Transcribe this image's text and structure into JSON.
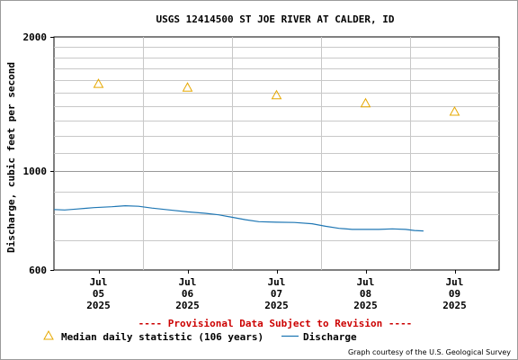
{
  "chart_data": {
    "type": "line",
    "title": "USGS 12414500 ST JOE RIVER AT CALDER, ID",
    "ylabel": "Discharge, cubic feet per second",
    "xlabel": "",
    "yscale": "log",
    "ylim": [
      600,
      2000
    ],
    "y_ticks": [
      "2000",
      "1000",
      "600"
    ],
    "x_ticks": [
      {
        "line1": "Jul",
        "line2": "05",
        "line3": "2025",
        "day": 0.5
      },
      {
        "line1": "Jul",
        "line2": "06",
        "line3": "2025",
        "day": 1.5
      },
      {
        "line1": "Jul",
        "line2": "07",
        "line3": "2025",
        "day": 2.5
      },
      {
        "line1": "Jul",
        "line2": "08",
        "line3": "2025",
        "day": 3.5
      },
      {
        "line1": "Jul",
        "line2": "09",
        "line3": "2025",
        "day": 4.5
      }
    ],
    "xlim_days": [
      0,
      5
    ],
    "grid": true,
    "provisional_notice": "---- Provisional Data Subject to Revision ----",
    "series": [
      {
        "name": "Discharge",
        "type": "line",
        "color": "#1f77b4",
        "points": [
          [
            0.0,
            820
          ],
          [
            0.12,
            818
          ],
          [
            0.25,
            822
          ],
          [
            0.35,
            825
          ],
          [
            0.45,
            828
          ],
          [
            0.65,
            832
          ],
          [
            0.8,
            836
          ],
          [
            0.95,
            834
          ],
          [
            1.1,
            826
          ],
          [
            1.3,
            818
          ],
          [
            1.5,
            810
          ],
          [
            1.7,
            804
          ],
          [
            1.85,
            798
          ],
          [
            2.0,
            788
          ],
          [
            2.15,
            778
          ],
          [
            2.3,
            770
          ],
          [
            2.5,
            768
          ],
          [
            2.7,
            767
          ],
          [
            2.9,
            762
          ],
          [
            3.05,
            752
          ],
          [
            3.2,
            744
          ],
          [
            3.35,
            740
          ],
          [
            3.55,
            740
          ],
          [
            3.65,
            740
          ],
          [
            3.8,
            742
          ],
          [
            3.95,
            740
          ],
          [
            4.05,
            736
          ],
          [
            4.15,
            734
          ]
        ]
      },
      {
        "name": "Median daily statistic (106 years)",
        "type": "scatter",
        "marker": "triangle-open",
        "color": "#e6a800",
        "points": [
          [
            0.5,
            1570
          ],
          [
            1.5,
            1540
          ],
          [
            2.5,
            1480
          ],
          [
            3.5,
            1420
          ],
          [
            4.5,
            1360
          ]
        ]
      }
    ],
    "legend": [
      {
        "label": "Median daily statistic (106 years)",
        "symbol": "triangle-icon"
      },
      {
        "label": "Discharge",
        "symbol": "line-swatch"
      }
    ],
    "credit": "Graph courtesy of the U.S. Geological Survey"
  }
}
